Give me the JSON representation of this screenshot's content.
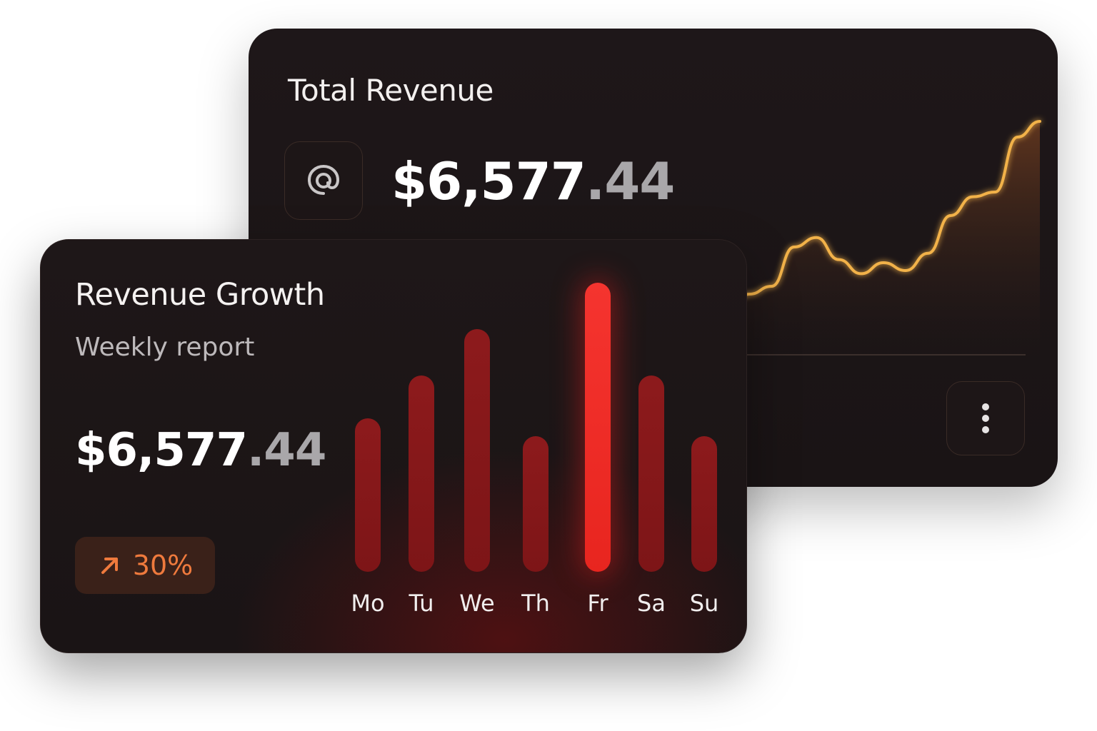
{
  "total_revenue_card": {
    "title": "Total Revenue",
    "amount_main": "$6,577",
    "amount_cents": ".44",
    "icon": "at-sign-icon",
    "line_color": "#f2b24a",
    "trend_values": [
      3,
      4,
      4.5,
      7,
      7.6,
      6.2,
      5.3,
      6,
      5.5,
      6.6,
      9,
      10.2,
      10.5,
      14,
      15
    ]
  },
  "more_button": {
    "icon": "more-vertical-icon"
  },
  "revenue_growth_card": {
    "title": "Revenue Growth",
    "subtitle": "Weekly report",
    "amount_main": "$6,577",
    "amount_cents": ".44",
    "change": {
      "icon": "arrow-up-right-icon",
      "value": "30%",
      "color": "#ef7a3d"
    }
  },
  "chart_data": {
    "type": "bar",
    "categories": [
      "Mo",
      "Tu",
      "We",
      "Th",
      "Fr",
      "Sa",
      "Su"
    ],
    "values": [
      53,
      68,
      84,
      47,
      100,
      68,
      47
    ],
    "highlighted": "Fr",
    "bar_color": "#8d1a1c",
    "highlight_color": "#f5342f"
  }
}
